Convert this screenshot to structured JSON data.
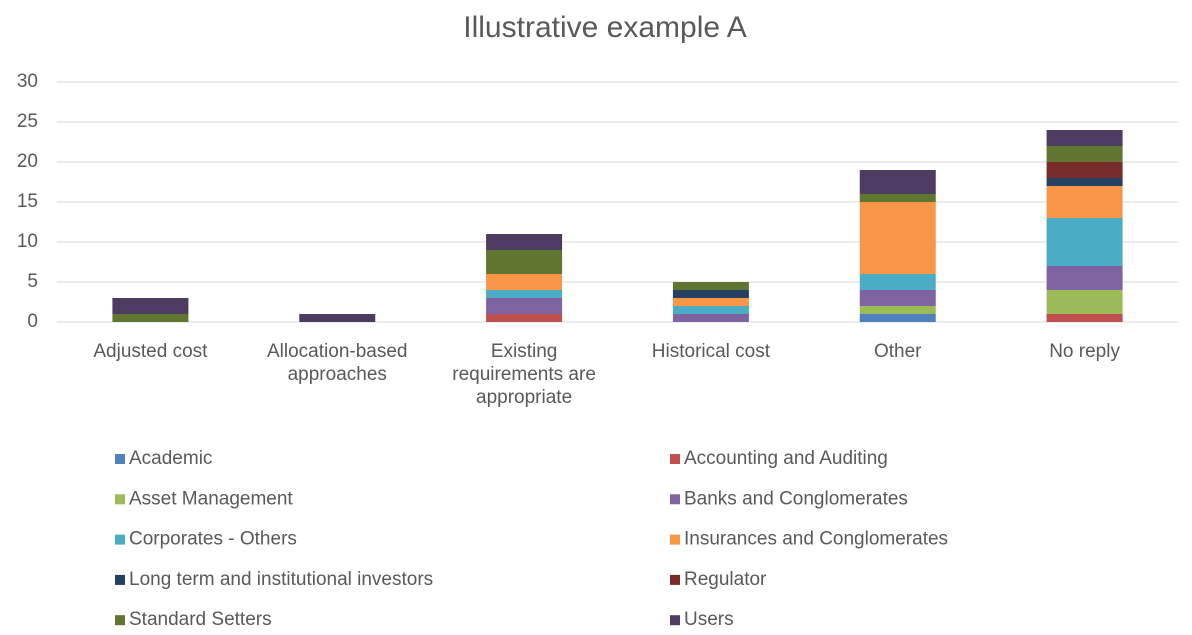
{
  "chart_data": {
    "type": "stacked_bar",
    "title": "Illustrative example A",
    "categories": [
      "Adjusted cost",
      "Allocation-based approaches",
      "Existing requirements are appropriate",
      "Historical cost",
      "Other",
      "No reply"
    ],
    "series": [
      {
        "name": "Academic",
        "color": "#4f81bd",
        "values": [
          0,
          0,
          0,
          0,
          1,
          0
        ]
      },
      {
        "name": "Accounting and Auditing",
        "color": "#c0504d",
        "values": [
          0,
          0,
          1,
          0,
          0,
          1
        ]
      },
      {
        "name": "Asset Management",
        "color": "#9bbb59",
        "values": [
          0,
          0,
          0,
          0,
          1,
          3
        ]
      },
      {
        "name": "Banks and Conglomerates",
        "color": "#8064a2",
        "values": [
          0,
          0,
          2,
          1,
          2,
          3
        ]
      },
      {
        "name": "Corporates - Others",
        "color": "#4bacc6",
        "values": [
          0,
          0,
          1,
          1,
          2,
          6
        ]
      },
      {
        "name": "Insurances and Conglomerates",
        "color": "#f79646",
        "values": [
          0,
          0,
          2,
          1,
          9,
          4
        ]
      },
      {
        "name": "Long term and institutional investors",
        "color": "#254061",
        "values": [
          0,
          0,
          0,
          1,
          0,
          1
        ]
      },
      {
        "name": "Regulator",
        "color": "#772c2a",
        "values": [
          0,
          0,
          0,
          0,
          0,
          2
        ]
      },
      {
        "name": "Standard Setters",
        "color": "#5f7530",
        "values": [
          1,
          0,
          3,
          1,
          1,
          2
        ]
      },
      {
        "name": "Users",
        "color": "#4d3b62",
        "values": [
          2,
          1,
          2,
          0,
          3,
          2
        ]
      }
    ],
    "ylim": [
      0,
      30
    ],
    "yticks": [
      0,
      5,
      10,
      15,
      20,
      25,
      30
    ],
    "grid": true,
    "legend": "bottom"
  }
}
